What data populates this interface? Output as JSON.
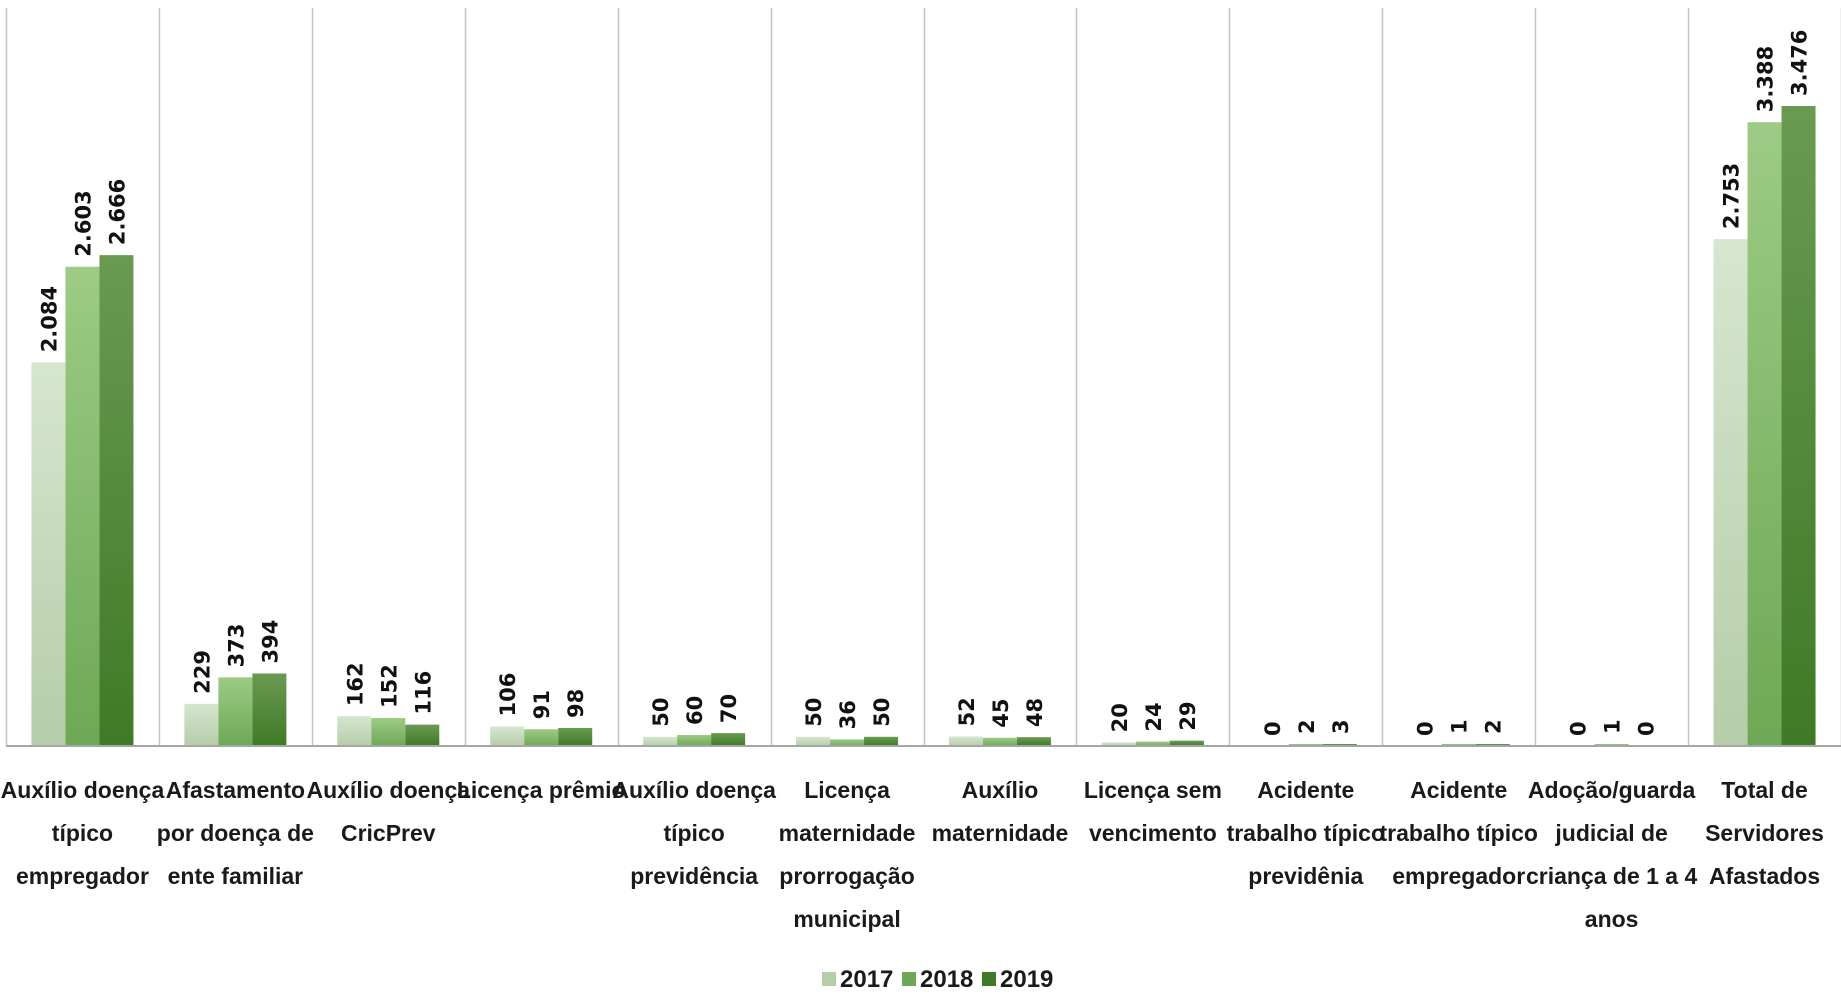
{
  "chart_data": {
    "type": "bar",
    "categories": [
      "Auxílio doença típico empregador",
      "Afastamento por doença de ente familiar",
      "Auxílio doença CricPrev",
      "Licença prêmio",
      "Auxílio doença típico previdência",
      "Licença maternidade prorrogação municipal",
      "Auxílio maternidade",
      "Licença sem vencimento",
      "Acidente trabalho típico previdênia",
      "Acidente trabalho típico empregador",
      "Adoção/guarda judicial de criança de 1 a 4 anos",
      "Total de Servidores Afastados"
    ],
    "category_lines": [
      [
        "Auxílio doença",
        "típico",
        "empregador"
      ],
      [
        "Afastamento",
        "por doença de",
        "ente familiar"
      ],
      [
        "Auxílio doença",
        "CricPrev"
      ],
      [
        "Licença prêmio"
      ],
      [
        "Auxílio doença",
        "típico",
        "previdência"
      ],
      [
        "Licença",
        "maternidade",
        "prorrogação",
        "municipal"
      ],
      [
        "Auxílio",
        "maternidade"
      ],
      [
        "Licença sem",
        "vencimento"
      ],
      [
        "Acidente",
        "trabalho típico",
        "previdênia"
      ],
      [
        "Acidente",
        "trabalho típico",
        "empregador"
      ],
      [
        "Adoção/guarda",
        "judicial de",
        "criança de 1 a 4",
        "anos"
      ],
      [
        "Total de",
        "Servidores",
        "Afastados"
      ]
    ],
    "series": [
      {
        "name": "2017",
        "values": [
          2084,
          229,
          162,
          106,
          50,
          50,
          52,
          20,
          0,
          0,
          0,
          2753
        ],
        "labels": [
          "2.084",
          "229",
          "162",
          "106",
          "50",
          "50",
          "52",
          "20",
          "0",
          "0",
          "0",
          "2.753"
        ]
      },
      {
        "name": "2018",
        "values": [
          2603,
          373,
          152,
          91,
          60,
          36,
          45,
          24,
          2,
          1,
          1,
          3388
        ],
        "labels": [
          "2.603",
          "373",
          "152",
          "91",
          "60",
          "36",
          "45",
          "24",
          "2",
          "1",
          "1",
          "3.388"
        ]
      },
      {
        "name": "2019",
        "values": [
          2666,
          394,
          116,
          98,
          70,
          50,
          48,
          29,
          3,
          2,
          0,
          3476
        ],
        "labels": [
          "2.666",
          "394",
          "116",
          "98",
          "70",
          "50",
          "48",
          "29",
          "3",
          "2",
          "0",
          "3.476"
        ]
      }
    ],
    "ylim": [
      0,
      3476
    ],
    "grid": false,
    "legend": "bottom",
    "colors": {
      "2017": [
        "#d6e6cf",
        "#b5cda8"
      ],
      "2018": [
        "#9dcb85",
        "#6ea856"
      ],
      "2019": [
        "#6a9a52",
        "#3f7a26"
      ]
    }
  }
}
